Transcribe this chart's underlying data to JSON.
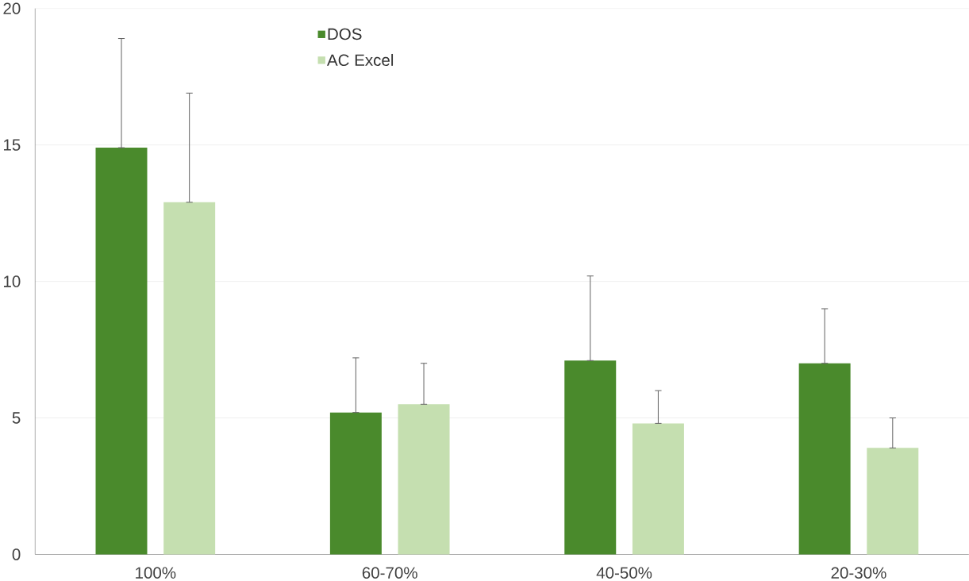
{
  "chart_data": {
    "type": "bar",
    "categories": [
      "100%",
      "60-70%",
      "40-50%",
      "20-30%"
    ],
    "series": [
      {
        "name": "DOS",
        "color": "#4a8a2c",
        "values": [
          14.9,
          5.2,
          7.1,
          7.0
        ],
        "errors": [
          [
            14.9,
            18.9
          ],
          [
            5.2,
            7.2
          ],
          [
            7.1,
            10.2
          ],
          [
            7.0,
            9.0
          ]
        ]
      },
      {
        "name": "AC Excel",
        "color": "#c5dfb0",
        "values": [
          12.9,
          5.5,
          4.8,
          3.9
        ],
        "errors": [
          [
            12.9,
            16.9
          ],
          [
            5.5,
            7.0
          ],
          [
            4.8,
            6.0
          ],
          [
            3.9,
            5.0
          ]
        ]
      }
    ],
    "ylim": [
      0,
      20
    ],
    "yticks": [
      0,
      5,
      10,
      15,
      20
    ],
    "grid": "y",
    "legend": "top"
  }
}
